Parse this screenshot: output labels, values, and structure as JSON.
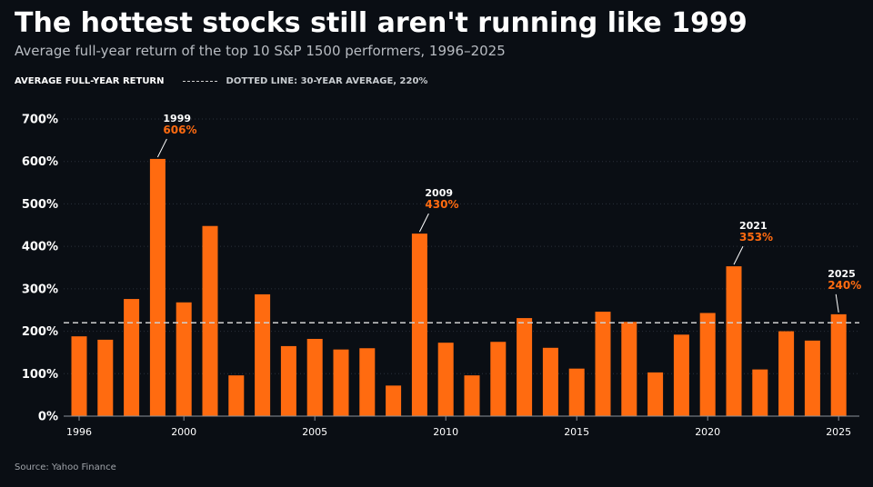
{
  "header": {
    "title": "The hottest stocks still aren't running like 1999",
    "subtitle": "Average full-year return of the top 10 S&P 1500 performers, 1996–2025"
  },
  "legend": {
    "series_label": "AVERAGE FULL-YEAR RETURN",
    "reference_label": "DOTTED LINE: 30-YEAR AVERAGE, 220%"
  },
  "source": "Source: Yahoo Finance",
  "colors": {
    "background": "#0a0e14",
    "bar": "#ff6b10",
    "annotation_value": "#ff6b10",
    "reference_line": "#d0d0d0",
    "grid": "#2a313b"
  },
  "chart_data": {
    "type": "bar",
    "title": "The hottest stocks still aren't running like 1999",
    "subtitle": "Average full-year return of the top 10 S&P 1500 performers, 1996–2025",
    "categories": [
      1996,
      1997,
      1998,
      1999,
      2000,
      2001,
      2002,
      2003,
      2004,
      2005,
      2006,
      2007,
      2008,
      2009,
      2010,
      2011,
      2012,
      2013,
      2014,
      2015,
      2016,
      2017,
      2018,
      2019,
      2020,
      2021,
      2022,
      2023,
      2024,
      2025
    ],
    "series": [
      {
        "name": "AVERAGE FULL-YEAR RETURN",
        "values": [
          188,
          180,
          276,
          606,
          268,
          448,
          96,
          287,
          165,
          182,
          157,
          160,
          72,
          430,
          173,
          96,
          175,
          231,
          161,
          112,
          246,
          222,
          103,
          192,
          243,
          353,
          110,
          200,
          178,
          240
        ]
      }
    ],
    "reference_line": {
      "label": "DOTTED LINE: 30-YEAR AVERAGE, 220%",
      "value": 220,
      "style": "dashed"
    },
    "ylim": [
      0,
      700
    ],
    "yticks": [
      0,
      100,
      200,
      300,
      400,
      500,
      600,
      700
    ],
    "ytick_labels": [
      "0%",
      "100%",
      "200%",
      "300%",
      "400%",
      "500%",
      "600%",
      "700%"
    ],
    "xticks": [
      1996,
      2000,
      2005,
      2010,
      2015,
      2020,
      2025
    ],
    "xtick_labels": [
      "1996",
      "2000",
      "2005",
      "2010",
      "2015",
      "2020",
      "2025"
    ],
    "xlabel": "",
    "ylabel": "",
    "grid": "horizontal dotted",
    "legend_placement": "top-left",
    "annotations": [
      {
        "x": 1999,
        "year_label": "1999",
        "value_label": "606%"
      },
      {
        "x": 2009,
        "year_label": "2009",
        "value_label": "430%"
      },
      {
        "x": 2021,
        "year_label": "2021",
        "value_label": "353%"
      },
      {
        "x": 2025,
        "year_label": "2025",
        "value_label": "240%"
      }
    ]
  }
}
